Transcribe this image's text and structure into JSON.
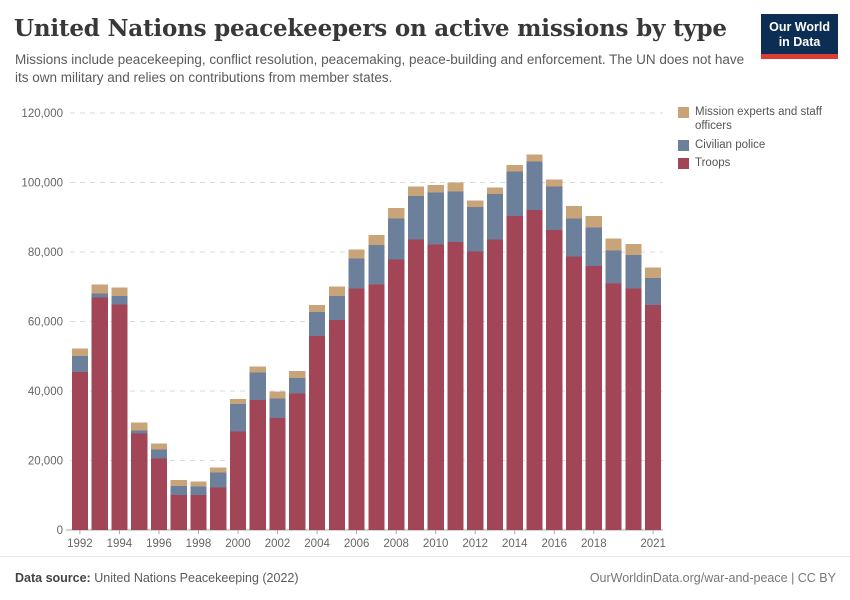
{
  "header": {
    "title": "United Nations peacekeepers on active missions by type",
    "subtitle": "Missions include peacekeeping, conflict resolution, peacemaking, peace-building and enforcement. The UN does not have its own military and relies on contributions from member states.",
    "logo": {
      "line1": "Our World",
      "line2": "in Data"
    }
  },
  "legend": {
    "items": [
      {
        "label": "Mission experts and staff officers",
        "color": "#c9a478"
      },
      {
        "label": "Civilian police",
        "color": "#6c7f9b"
      },
      {
        "label": "Troops",
        "color": "#a24557"
      }
    ]
  },
  "chart_data": {
    "type": "bar",
    "stacked": true,
    "title": "United Nations peacekeepers on active missions by type",
    "xlabel": "",
    "ylabel": "",
    "ylim": [
      0,
      120000
    ],
    "grid": "horizontal-dashed",
    "legend_position": "top-right",
    "x": [
      1992,
      1993,
      1994,
      1995,
      1996,
      1997,
      1998,
      1999,
      2000,
      2001,
      2002,
      2003,
      2004,
      2005,
      2006,
      2007,
      2008,
      2009,
      2010,
      2011,
      2012,
      2013,
      2014,
      2015,
      2016,
      2017,
      2018,
      2019,
      2020,
      2021
    ],
    "series": [
      {
        "name": "Troops",
        "color": "#a24557",
        "values": [
          45500,
          66900,
          64900,
          27800,
          20600,
          10100,
          10100,
          12200,
          28300,
          37400,
          32300,
          39300,
          55900,
          60400,
          69500,
          70600,
          77900,
          83600,
          82200,
          82900,
          80100,
          83600,
          90400,
          92100,
          86300,
          78700,
          76000,
          71000,
          69500,
          64800
        ]
      },
      {
        "name": "Civilian police",
        "color": "#6c7f9b",
        "values": [
          4600,
          1200,
          2400,
          800,
          2600,
          2600,
          2400,
          4300,
          8000,
          7900,
          5500,
          4500,
          6900,
          6900,
          8700,
          11400,
          11800,
          12500,
          14900,
          14500,
          12800,
          13100,
          12800,
          13900,
          12500,
          11000,
          11100,
          9400,
          9600,
          7700
        ]
      },
      {
        "name": "Mission experts and staff officers",
        "color": "#c9a478",
        "values": [
          2200,
          2600,
          2500,
          2300,
          1700,
          1700,
          1400,
          1500,
          1400,
          1800,
          2000,
          2000,
          2000,
          2800,
          2500,
          2900,
          2900,
          2700,
          2200,
          2600,
          1900,
          1900,
          1900,
          2100,
          2100,
          3500,
          3300,
          3500,
          3200,
          3100
        ]
      }
    ],
    "yticks": [
      0,
      20000,
      40000,
      60000,
      80000,
      100000,
      120000
    ],
    "ytick_labels": [
      "0",
      "20,000",
      "40,000",
      "60,000",
      "80,000",
      "100,000",
      "120,000"
    ],
    "xticks": [
      1992,
      1994,
      1996,
      1998,
      2000,
      2002,
      2004,
      2006,
      2008,
      2010,
      2012,
      2014,
      2016,
      2018,
      2021
    ],
    "xtick_labels": [
      "1992",
      "1994",
      "1996",
      "1998",
      "2000",
      "2002",
      "2004",
      "2006",
      "2008",
      "2010",
      "2012",
      "2014",
      "2016",
      "2018",
      "2021"
    ]
  },
  "footer": {
    "source_label": "Data source:",
    "source_value": "United Nations Peacekeeping (2022)",
    "right": "OurWorldinData.org/war-and-peace | CC BY"
  }
}
